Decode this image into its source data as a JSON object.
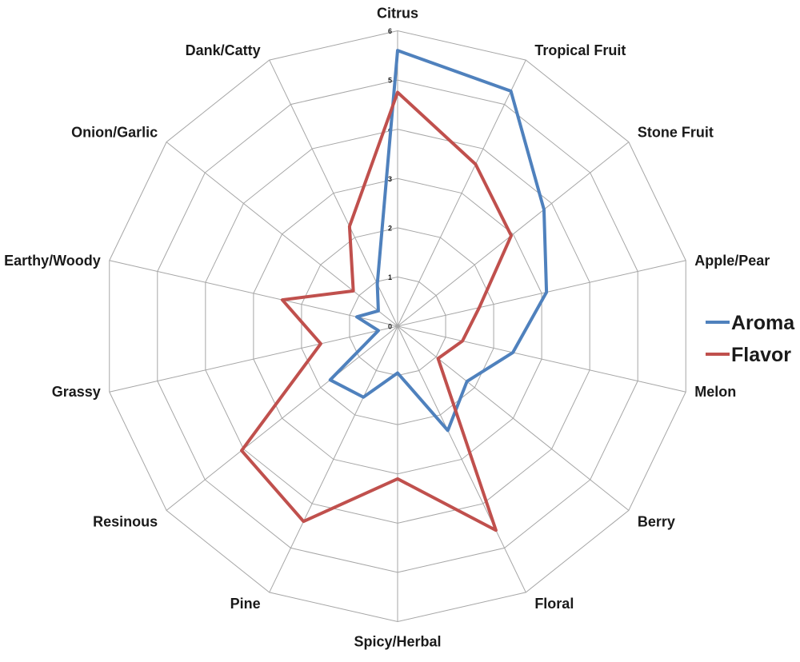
{
  "chart_data": {
    "type": "radar",
    "title": "",
    "categories": [
      "Citrus",
      "Tropical Fruit",
      "Stone Fruit",
      "Apple/Pear",
      "Melon",
      "Berry",
      "Floral",
      "Spicy/Herbal",
      "Pine",
      "Resinous",
      "Grassy",
      "Earthy/Woody",
      "Onion/Garlic",
      "Dank/Catty"
    ],
    "series": [
      {
        "name": "Aroma",
        "color": "#4F81BD",
        "values": [
          5.6,
          5.3,
          3.8,
          3.1,
          2.4,
          1.8,
          2.35,
          0.95,
          1.6,
          1.75,
          0.4,
          0.85,
          0.5,
          0.95
        ]
      },
      {
        "name": "Flavor",
        "color": "#C0504D",
        "values": [
          4.75,
          3.65,
          2.95,
          1.7,
          1.35,
          1.05,
          4.6,
          3.1,
          4.4,
          4.05,
          1.6,
          2.4,
          1.15,
          2.25
        ]
      }
    ],
    "scale": {
      "min": 0,
      "max": 6,
      "step": 1
    },
    "tick_labels": [
      "0",
      "1",
      "2",
      "3",
      "4",
      "5",
      "6"
    ],
    "grid": true,
    "legend_position": "right"
  },
  "legend": {
    "entries": [
      {
        "label": "Aroma",
        "color": "#4F81BD"
      },
      {
        "label": "Flavor",
        "color": "#C0504D"
      }
    ]
  },
  "colors": {
    "background": "#FFFFFF",
    "grid": "#A6A6A6",
    "text": "#1A1A1A"
  }
}
